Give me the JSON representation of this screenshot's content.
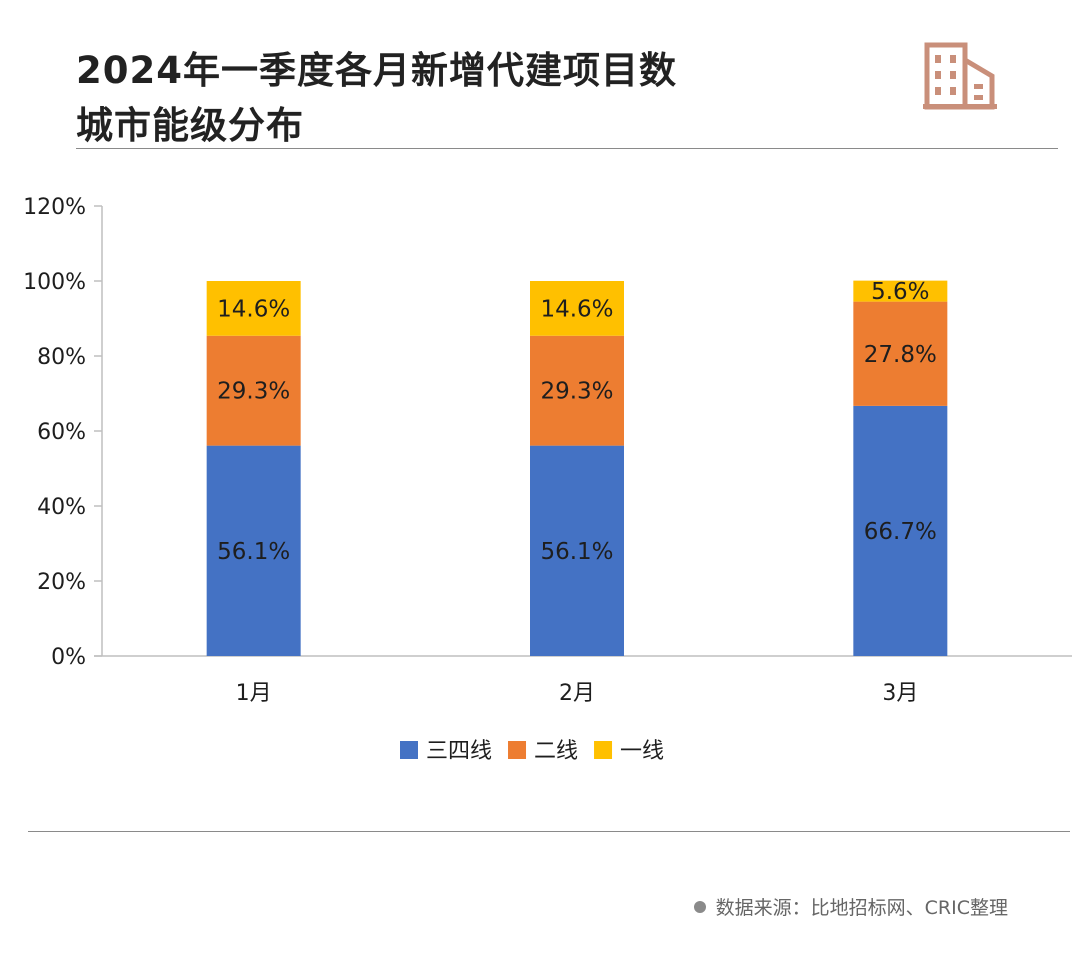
{
  "header": {
    "title_line1": "2024年一季度各月新增代建项目数",
    "title_line2": "城市能级分布",
    "icon": "building-icon"
  },
  "source": {
    "text": "数据来源：比地招标网、CRIC整理"
  },
  "colors": {
    "tier34": "#4472c4",
    "tier2": "#ed7d31",
    "tier1": "#ffc000",
    "icon": "#c98f7a",
    "axis": "#bfbfbf"
  },
  "chart_data": {
    "type": "bar",
    "stacked": true,
    "title": "2024年一季度各月新增代建项目数城市能级分布",
    "categories": [
      "1月",
      "2月",
      "3月"
    ],
    "series": [
      {
        "name": "三四线",
        "values": [
          56.1,
          56.1,
          66.7
        ],
        "labels": [
          "56.1%",
          "56.1%",
          "66.7%"
        ],
        "color": "#4472c4"
      },
      {
        "name": "二线",
        "values": [
          29.3,
          29.3,
          27.8
        ],
        "labels": [
          "29.3%",
          "29.3%",
          "27.8%"
        ],
        "color": "#ed7d31"
      },
      {
        "name": "一线",
        "values": [
          14.6,
          14.6,
          5.6
        ],
        "labels": [
          "14.6%",
          "14.6%",
          "5.6%"
        ],
        "color": "#ffc000"
      }
    ],
    "ylim": [
      0,
      120
    ],
    "yticks": [
      0,
      20,
      40,
      60,
      80,
      100,
      120
    ],
    "ytick_labels": [
      "0%",
      "20%",
      "40%",
      "60%",
      "80%",
      "100%",
      "120%"
    ],
    "xlabel": "",
    "ylabel": "",
    "legend_position": "bottom",
    "grid": false
  }
}
